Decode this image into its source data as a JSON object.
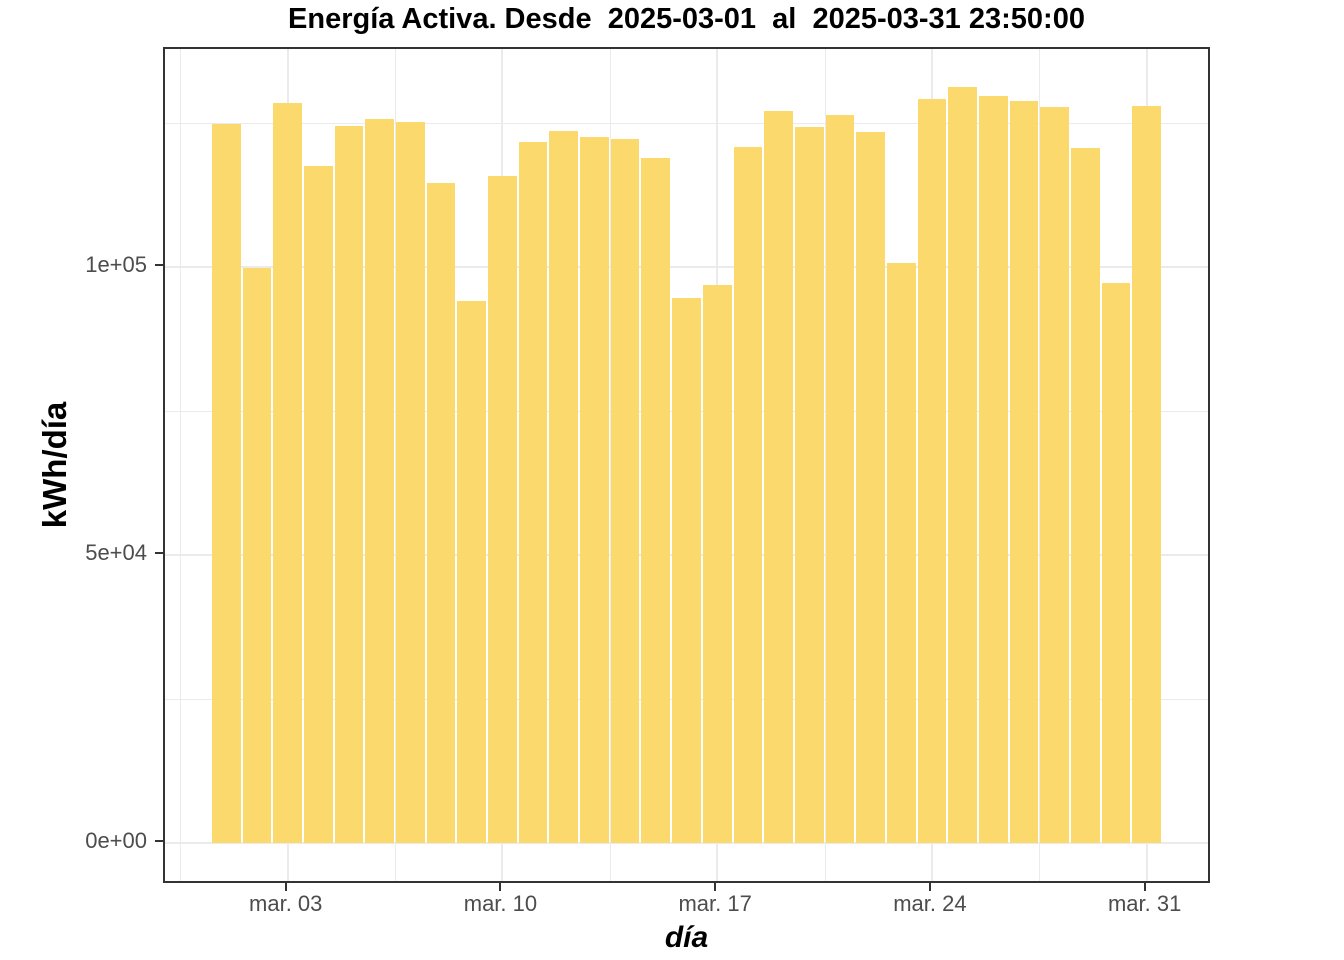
{
  "chart_data": {
    "type": "bar",
    "title": "Energía Activa. Desde  2025-03-01  al  2025-03-31 23:50:00",
    "xlabel": "día",
    "ylabel": "kWh/día",
    "categories": [
      1,
      2,
      3,
      4,
      5,
      6,
      7,
      8,
      9,
      10,
      11,
      12,
      13,
      14,
      15,
      16,
      17,
      18,
      19,
      20,
      21,
      22,
      23,
      24,
      25,
      26,
      27,
      28,
      29,
      30,
      31
    ],
    "values": [
      124800,
      99800,
      128500,
      117600,
      124600,
      125700,
      125300,
      114700,
      94200,
      115900,
      121700,
      123700,
      122700,
      122300,
      118900,
      94700,
      96900,
      120900,
      127100,
      124400,
      126400,
      123400,
      100700,
      129200,
      131300,
      129800,
      128800,
      127800,
      120700,
      97300,
      128000
    ],
    "x_ticks": [
      {
        "day": 3,
        "label": "mar. 03"
      },
      {
        "day": 10,
        "label": "mar. 10"
      },
      {
        "day": 17,
        "label": "mar. 17"
      },
      {
        "day": 24,
        "label": "mar. 24"
      },
      {
        "day": 31,
        "label": "mar. 31"
      }
    ],
    "y_ticks": [
      {
        "value": 0,
        "label": "0e+00"
      },
      {
        "value": 50000,
        "label": "5e+04"
      },
      {
        "value": 100000,
        "label": "1e+05"
      }
    ],
    "x_minor_gridlines": [
      -0.5,
      6.5,
      13.5,
      20.5,
      27.5
    ],
    "y_minor_gridlines": [
      25000,
      75000,
      125000
    ],
    "x_domain": [
      -1,
      33
    ],
    "y_domain": [
      -6600,
      137900
    ],
    "grid": true,
    "legend": "none",
    "colors": {
      "bar_fill": "#FCD96C",
      "grid": "#EBEBEB",
      "panel_border": "#333333",
      "tick_text": "#4D4D4D",
      "title_text": "#000000"
    }
  }
}
